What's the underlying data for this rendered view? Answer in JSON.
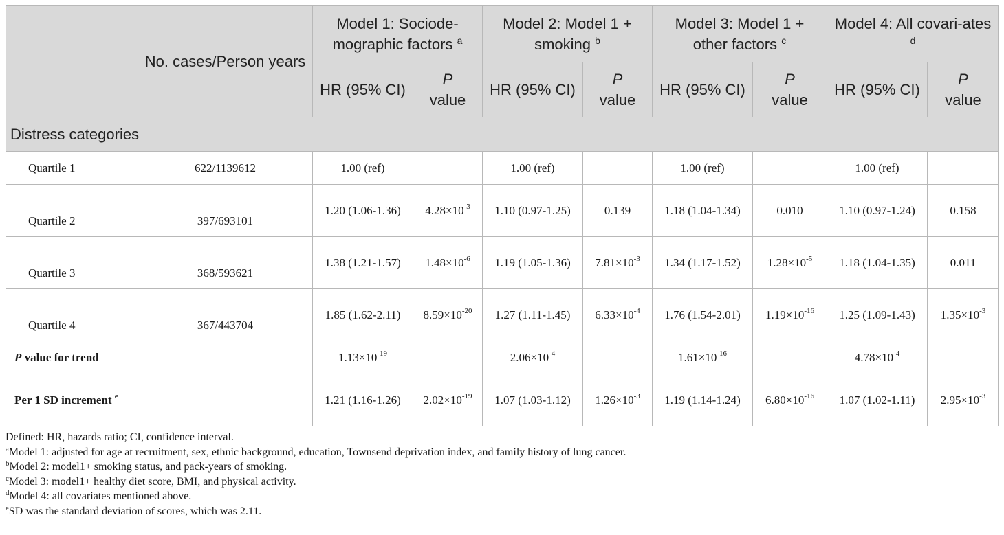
{
  "header": {
    "cases_label": "No. cases/Person years",
    "models": [
      {
        "title": "Model 1: Sociode-mographic factors",
        "mark": "a"
      },
      {
        "title": "Model 2: Model 1 + smoking",
        "mark": "b"
      },
      {
        "title": "Model 3: Model 1 + other factors",
        "mark": "c"
      },
      {
        "title": "Model 4: All covari-ates",
        "mark": "d"
      }
    ],
    "hr_label": "HR (95% CI)",
    "p_label_italic": "P",
    "p_label_rest": "value"
  },
  "section_title": "Distress categories",
  "rows": [
    {
      "label": "Quartile 1",
      "cases": "622/1139612",
      "hr": [
        "1.00 (ref)",
        "1.00 (ref)",
        "1.00 (ref)",
        "1.00 (ref)"
      ],
      "p": [
        {
          "base": "",
          "exp": ""
        },
        {
          "base": "",
          "exp": ""
        },
        {
          "base": "",
          "exp": ""
        },
        {
          "base": "",
          "exp": ""
        }
      ]
    },
    {
      "label": "Quartile 2",
      "cases": "397/693101",
      "hr": [
        "1.20 (1.06-1.36)",
        "1.10 (0.97-1.25)",
        "1.18 (1.04-1.34)",
        "1.10 (0.97-1.24)"
      ],
      "p": [
        {
          "base": "4.28×10",
          "exp": "-3"
        },
        {
          "base": "0.139",
          "exp": ""
        },
        {
          "base": "0.010",
          "exp": ""
        },
        {
          "base": "0.158",
          "exp": ""
        }
      ]
    },
    {
      "label": "Quartile 3",
      "cases": "368/593621",
      "hr": [
        "1.38 (1.21-1.57)",
        "1.19 (1.05-1.36)",
        "1.34 (1.17-1.52)",
        "1.18 (1.04-1.35)"
      ],
      "p": [
        {
          "base": "1.48×10",
          "exp": "-6"
        },
        {
          "base": "7.81×10",
          "exp": "-3"
        },
        {
          "base": "1.28×10",
          "exp": "-5"
        },
        {
          "base": "0.011",
          "exp": ""
        }
      ]
    },
    {
      "label": "Quartile 4",
      "cases": "367/443704",
      "hr": [
        "1.85 (1.62-2.11)",
        "1.27 (1.11-1.45)",
        "1.76 (1.54-2.01)",
        "1.25 (1.09-1.43)"
      ],
      "p": [
        {
          "base": "8.59×10",
          "exp": "-20"
        },
        {
          "base": "6.33×10",
          "exp": "-4"
        },
        {
          "base": "1.19×10",
          "exp": "-16"
        },
        {
          "base": "1.35×10",
          "exp": "-3"
        }
      ]
    }
  ],
  "trend": {
    "label_italic": "P",
    "label_rest": " value for trend",
    "values": [
      {
        "base": "1.13×10",
        "exp": "-19"
      },
      {
        "base": "2.06×10",
        "exp": "-4"
      },
      {
        "base": "1.61×10",
        "exp": "-16"
      },
      {
        "base": "4.78×10",
        "exp": "-4"
      }
    ]
  },
  "per_sd": {
    "label": "Per 1 SD increment",
    "mark": "e",
    "hr": [
      "1.21 (1.16-1.26)",
      "1.07 (1.03-1.12)",
      "1.19 (1.14-1.24)",
      "1.07 (1.02-1.11)"
    ],
    "p": [
      {
        "base": "2.02×10",
        "exp": "-19"
      },
      {
        "base": "1.26×10",
        "exp": "-3"
      },
      {
        "base": "6.80×10",
        "exp": "-16"
      },
      {
        "base": "2.95×10",
        "exp": "-3"
      }
    ]
  },
  "footnotes": [
    {
      "mark": "",
      "text": "Defined: HR, hazards ratio; CI, confidence interval."
    },
    {
      "mark": "a",
      "text": "Model 1: adjusted for age at recruitment, sex, ethnic background, education, Townsend deprivation index, and family history of lung cancer."
    },
    {
      "mark": "b",
      "text": "Model 2: model1+ smoking status, and pack-years of smoking."
    },
    {
      "mark": "c",
      "text": "Model 3: model1+ healthy diet score, BMI, and physical activity."
    },
    {
      "mark": "d",
      "text": "Model 4: all covariates mentioned above."
    },
    {
      "mark": "e",
      "text": "SD was the standard deviation of scores, which was 2.11."
    }
  ]
}
